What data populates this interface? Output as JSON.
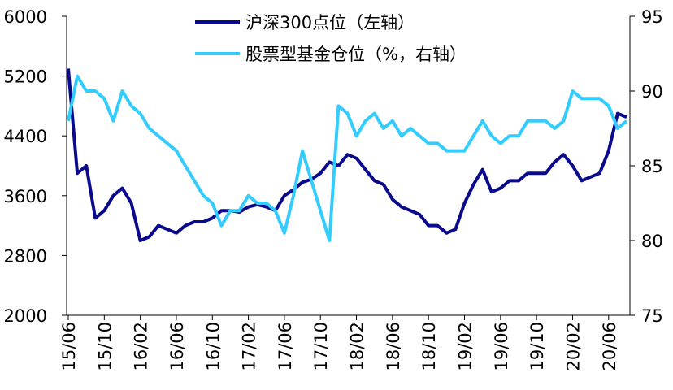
{
  "chart_data": {
    "type": "line",
    "categories": [
      "15/06",
      null,
      null,
      null,
      "15/10",
      null,
      null,
      null,
      "16/02",
      null,
      null,
      null,
      "16/06",
      null,
      null,
      null,
      "16/10",
      null,
      null,
      null,
      "17/02",
      null,
      null,
      null,
      "17/06",
      null,
      null,
      null,
      "17/10",
      null,
      null,
      null,
      "18/02",
      null,
      null,
      null,
      "18/06",
      null,
      null,
      null,
      "18/10",
      null,
      null,
      null,
      "19/02",
      null,
      null,
      null,
      "19/06",
      null,
      null,
      null,
      "19/10",
      null,
      null,
      null,
      "20/02",
      null,
      null,
      null,
      "20/06",
      null,
      null
    ],
    "series": [
      {
        "name": "沪深300点位（左轴）",
        "color": "#0a0a8c",
        "axis": "y",
        "values": [
          5300,
          3900,
          4000,
          3300,
          3400,
          3600,
          3700,
          3500,
          3000,
          3050,
          3200,
          3150,
          3100,
          3200,
          3250,
          3250,
          3300,
          3400,
          3400,
          3380,
          3450,
          3480,
          3450,
          3400,
          3600,
          3680,
          3780,
          3820,
          3900,
          4050,
          4000,
          4150,
          4100,
          3950,
          3800,
          3750,
          3550,
          3450,
          3400,
          3350,
          3200,
          3200,
          3100,
          3150,
          3500,
          3750,
          3950,
          3650,
          3700,
          3800,
          3800,
          3900,
          3900,
          3900,
          4050,
          4150,
          4000,
          3800,
          3850,
          3900,
          4200,
          4700,
          4650
        ]
      },
      {
        "name": "股票型基金仓位（%，右轴）",
        "color": "#33ccff",
        "axis": "y2",
        "values": [
          88,
          91,
          90,
          90,
          89.5,
          88,
          90,
          89,
          88.5,
          87.5,
          87,
          86.5,
          86,
          85,
          84,
          83,
          82.5,
          81,
          82,
          82,
          83,
          82.5,
          82.5,
          82,
          80.5,
          83,
          86,
          84,
          82,
          80,
          89,
          88.5,
          87,
          88,
          88.5,
          87.5,
          88,
          87,
          87.5,
          87,
          86.5,
          86.5,
          86,
          86,
          86,
          87,
          88,
          87,
          86.5,
          87,
          87,
          88,
          88,
          88,
          87.5,
          88,
          90,
          89.5,
          89.5,
          89.5,
          89,
          87.5,
          88
        ]
      }
    ],
    "ylim": [
      2000,
      6000
    ],
    "yticks": [
      2000,
      2800,
      3600,
      4400,
      5200,
      6000
    ],
    "y2lim": [
      75,
      95
    ],
    "y2ticks": [
      75,
      80,
      85,
      90,
      95
    ],
    "grid": false
  }
}
